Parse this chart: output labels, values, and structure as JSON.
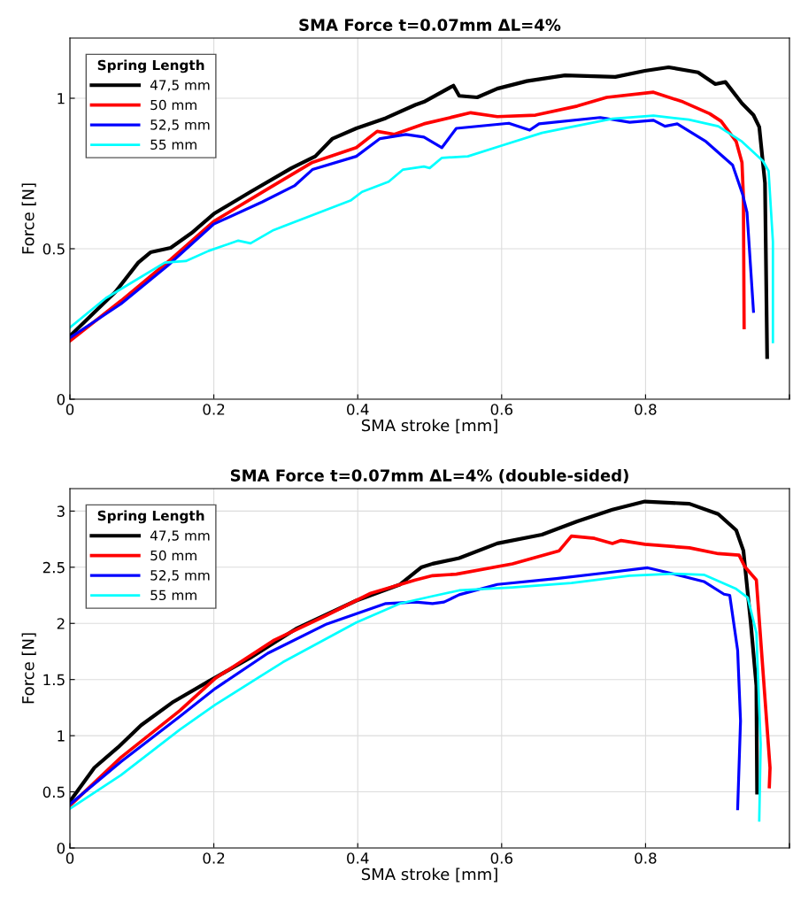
{
  "chart_data": [
    {
      "type": "line",
      "title": "SMA Force t=0.07mm ΔL=4%",
      "xlabel": "SMA stroke [mm]",
      "ylabel": "Force [N]",
      "legend_title": "Spring Length",
      "legend": "top left",
      "grid": true,
      "xlim": [
        0,
        1
      ],
      "xticks": [
        0,
        0.2,
        0.4,
        0.6,
        0.8,
        {
          "value": 1,
          "label": null
        }
      ],
      "ylim": [
        0,
        1.2
      ],
      "yticks": [
        0,
        0.5,
        1
      ],
      "series": [
        {
          "name": "47,5 mm",
          "color": "#000000",
          "x": [
            0,
            0.063,
            0.095,
            0.112,
            0.14,
            0.169,
            0.2,
            0.251,
            0.308,
            0.341,
            0.365,
            0.398,
            0.439,
            0.48,
            0.492,
            0.533,
            0.541,
            0.566,
            0.594,
            0.635,
            0.688,
            0.758,
            0.799,
            0.832,
            0.873,
            0.897,
            0.911,
            0.934,
            0.95,
            0.958,
            0.966,
            0.969
          ],
          "values": [
            0.21,
            0.356,
            0.454,
            0.488,
            0.503,
            0.552,
            0.616,
            0.689,
            0.768,
            0.807,
            0.866,
            0.9,
            0.934,
            0.978,
            0.988,
            1.042,
            1.008,
            1.003,
            1.032,
            1.057,
            1.076,
            1.071,
            1.091,
            1.103,
            1.086,
            1.047,
            1.054,
            0.983,
            0.944,
            0.905,
            0.718,
            0.14
          ]
        },
        {
          "name": "50 mm",
          "color": "#ff0000",
          "x": [
            0,
            0.071,
            0.14,
            0.2,
            0.275,
            0.337,
            0.398,
            0.427,
            0.451,
            0.492,
            0.557,
            0.594,
            0.647,
            0.705,
            0.746,
            0.811,
            0.852,
            0.889,
            0.905,
            0.926,
            0.934,
            0.936,
            0.937
          ],
          "values": [
            0.194,
            0.327,
            0.464,
            0.591,
            0.699,
            0.787,
            0.836,
            0.89,
            0.88,
            0.915,
            0.952,
            0.939,
            0.944,
            0.974,
            1.003,
            1.02,
            0.988,
            0.949,
            0.924,
            0.856,
            0.787,
            0.67,
            0.238
          ]
        },
        {
          "name": "52,5 mm",
          "color": "#0000ff",
          "x": [
            0,
            0.071,
            0.136,
            0.2,
            0.267,
            0.312,
            0.337,
            0.398,
            0.431,
            0.467,
            0.492,
            0.517,
            0.537,
            0.61,
            0.639,
            0.652,
            0.737,
            0.778,
            0.811,
            0.827,
            0.844,
            0.884,
            0.921,
            0.935,
            0.941,
            0.95
          ],
          "values": [
            0.204,
            0.317,
            0.444,
            0.582,
            0.655,
            0.709,
            0.763,
            0.807,
            0.866,
            0.88,
            0.871,
            0.836,
            0.9,
            0.917,
            0.894,
            0.915,
            0.936,
            0.92,
            0.927,
            0.907,
            0.915,
            0.856,
            0.778,
            0.68,
            0.621,
            0.292
          ]
        },
        {
          "name": "55 mm",
          "color": "#00ffff",
          "x": [
            0,
            0.05,
            0.132,
            0.161,
            0.193,
            0.234,
            0.251,
            0.283,
            0.39,
            0.406,
            0.443,
            0.463,
            0.492,
            0.5,
            0.517,
            0.553,
            0.598,
            0.656,
            0.697,
            0.754,
            0.811,
            0.86,
            0.901,
            0.934,
            0.963,
            0.971,
            0.977,
            0.977
          ],
          "values": [
            0.238,
            0.336,
            0.454,
            0.459,
            0.493,
            0.527,
            0.518,
            0.562,
            0.66,
            0.689,
            0.723,
            0.763,
            0.773,
            0.768,
            0.802,
            0.807,
            0.841,
            0.885,
            0.905,
            0.932,
            0.942,
            0.929,
            0.907,
            0.856,
            0.792,
            0.758,
            0.523,
            0.19
          ]
        }
      ]
    },
    {
      "type": "line",
      "title": "SMA Force t=0.07mm ΔL=4% (double-sided)",
      "xlabel": "SMA stroke [mm]",
      "ylabel": "Force [N]",
      "legend_title": "Spring Length",
      "legend": "top left",
      "grid": true,
      "xlim": [
        0,
        1
      ],
      "xticks": [
        0,
        0.2,
        0.4,
        0.6,
        0.8,
        {
          "value": 1,
          "label": null
        }
      ],
      "ylim": [
        0,
        3.2
      ],
      "yticks": [
        0,
        0.5,
        1,
        1.5,
        2,
        2.5,
        3
      ],
      "series": [
        {
          "name": "47,5 mm",
          "color": "#000000",
          "x": [
            0,
            0.034,
            0.067,
            0.099,
            0.144,
            0.193,
            0.251,
            0.316,
            0.398,
            0.459,
            0.488,
            0.504,
            0.541,
            0.594,
            0.656,
            0.705,
            0.754,
            0.799,
            0.861,
            0.901,
            0.926,
            0.936,
            0.946,
            0.954,
            0.955
          ],
          "values": [
            0.415,
            0.715,
            0.897,
            1.094,
            1.303,
            1.485,
            1.695,
            1.958,
            2.203,
            2.347,
            2.498,
            2.531,
            2.581,
            2.712,
            2.79,
            2.908,
            3.012,
            3.085,
            3.065,
            2.973,
            2.83,
            2.647,
            2.02,
            1.446,
            0.493
          ]
        },
        {
          "name": "50 mm",
          "color": "#ff0000",
          "x": [
            0,
            0.071,
            0.153,
            0.202,
            0.284,
            0.357,
            0.418,
            0.48,
            0.504,
            0.537,
            0.615,
            0.68,
            0.697,
            0.729,
            0.754,
            0.766,
            0.799,
            0.861,
            0.901,
            0.93,
            0.938,
            0.954,
            0.973,
            0.972
          ],
          "values": [
            0.376,
            0.807,
            1.225,
            1.511,
            1.851,
            2.073,
            2.268,
            2.386,
            2.425,
            2.438,
            2.53,
            2.647,
            2.777,
            2.757,
            2.712,
            2.738,
            2.704,
            2.673,
            2.621,
            2.608,
            2.504,
            2.386,
            0.714,
            0.545
          ]
        },
        {
          "name": "52,5 mm",
          "color": "#0000ff",
          "x": [
            0,
            0.071,
            0.153,
            0.202,
            0.275,
            0.357,
            0.439,
            0.48,
            0.504,
            0.52,
            0.541,
            0.594,
            0.676,
            0.746,
            0.803,
            0.832,
            0.881,
            0.909,
            0.917,
            0.928,
            0.932,
            0.928
          ],
          "values": [
            0.389,
            0.768,
            1.173,
            1.42,
            1.734,
            1.995,
            2.177,
            2.19,
            2.177,
            2.19,
            2.255,
            2.347,
            2.399,
            2.451,
            2.495,
            2.451,
            2.373,
            2.26,
            2.25,
            1.759,
            1.132,
            0.349
          ]
        },
        {
          "name": "55 mm",
          "color": "#00ffff",
          "x": [
            0,
            0.071,
            0.153,
            0.202,
            0.296,
            0.398,
            0.459,
            0.504,
            0.541,
            0.615,
            0.697,
            0.778,
            0.84,
            0.881,
            0.926,
            0.942,
            0.954,
            0.96,
            0.958
          ],
          "values": [
            0.35,
            0.649,
            1.055,
            1.276,
            1.655,
            2.008,
            2.177,
            2.242,
            2.294,
            2.32,
            2.36,
            2.425,
            2.443,
            2.433,
            2.307,
            2.229,
            1.916,
            0.924,
            0.245
          ]
        }
      ]
    }
  ]
}
